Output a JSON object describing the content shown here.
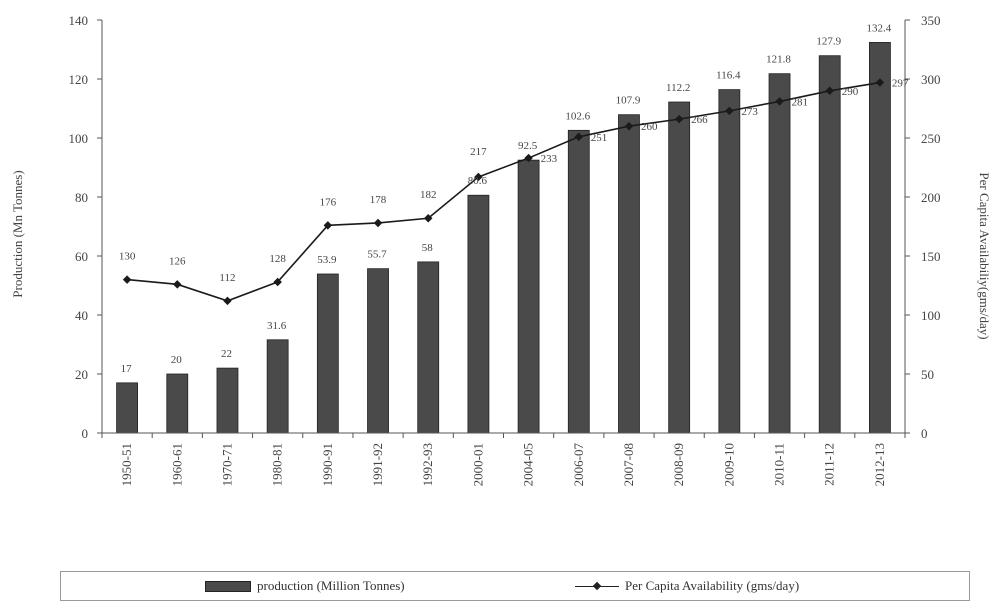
{
  "chart_data": {
    "type": "bar",
    "categories": [
      "1950-51",
      "1960-61",
      "1970-71",
      "1980-81",
      "1990-91",
      "1991-92",
      "1992-93",
      "2000-01",
      "2004-05",
      "2006-07",
      "2007-08",
      "2008-09",
      "2009-10",
      "2010-11",
      "2011-12",
      "2012-13"
    ],
    "series": [
      {
        "name": "production (Million Tonnes)",
        "type": "bar",
        "axis": "left",
        "color": "#4a4a4a",
        "values": [
          17,
          20,
          22,
          31.6,
          53.9,
          55.7,
          58,
          80.6,
          92.5,
          102.6,
          107.9,
          112.2,
          116.4,
          121.8,
          127.9,
          132.4
        ],
        "labels": [
          "17",
          "20",
          "22",
          "31.6",
          "53.9",
          "55.7",
          "58",
          "80.6",
          "92.5",
          "102.6",
          "107.9",
          "112.2",
          "116.4",
          "121.8",
          "127.9",
          "132.4"
        ]
      },
      {
        "name": "Per Capita Availability (gms/day)",
        "type": "line",
        "axis": "right",
        "color": "#1a1a1a",
        "values": [
          130,
          126,
          112,
          128,
          176,
          178,
          182,
          217,
          233,
          251,
          260,
          266,
          273,
          281,
          290,
          297
        ],
        "labels": [
          "130",
          "126",
          "112",
          "128",
          "176",
          "178",
          "182",
          "217",
          "233",
          "251",
          "260",
          "266",
          "273",
          "281",
          "290",
          "297"
        ]
      }
    ],
    "ylabel": "Production (Mn Tonnes)",
    "y2label": "Per Capita Availabiliy(gms/day)",
    "ylim": [
      0,
      140
    ],
    "y2lim": [
      0,
      350
    ],
    "yticks": [
      "0",
      "20",
      "40",
      "60",
      "80",
      "100",
      "120",
      "140"
    ],
    "y2ticks": [
      "0",
      "50",
      "100",
      "150",
      "200",
      "250",
      "300",
      "350"
    ],
    "grid": false,
    "legend_position": "bottom"
  }
}
